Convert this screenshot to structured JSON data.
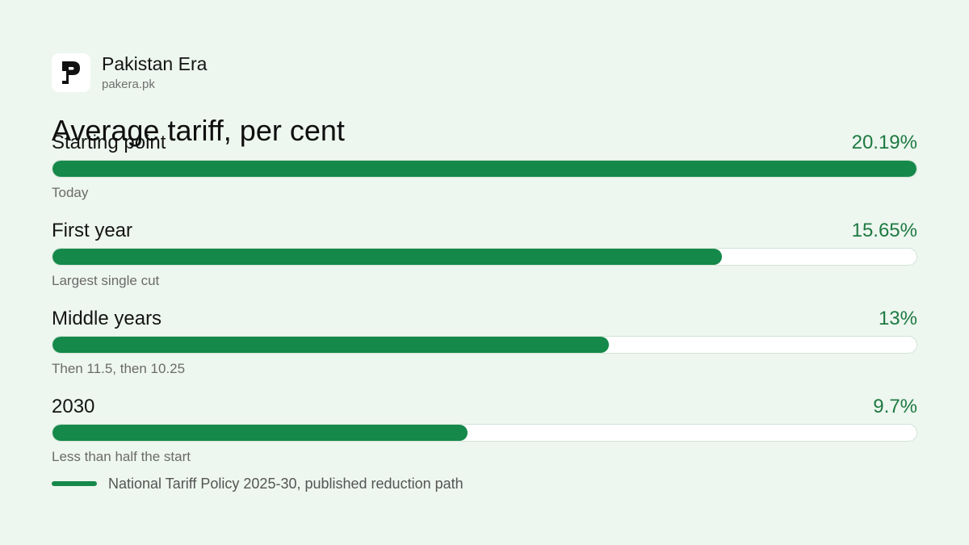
{
  "brand": {
    "name": "Pakistan Era",
    "url": "pakera.pk",
    "logo_icon": "pakistan-era-logo-icon"
  },
  "colors": {
    "background": "#edf6ef",
    "bar_fill": "#15894a",
    "bar_track": "#ffffff",
    "value_text": "#1e7a42"
  },
  "chart_data": {
    "type": "bar",
    "orientation": "horizontal",
    "title": "Average tariff, per cent",
    "xlim": [
      0,
      20.19
    ],
    "categories": [
      "Starting point",
      "First year",
      "Middle years",
      "2030"
    ],
    "values": [
      20.19,
      15.65,
      13,
      9.7
    ],
    "value_labels": [
      "20.19%",
      "15.65%",
      "13%",
      "9.7%"
    ],
    "notes": [
      "Today",
      "Largest single cut",
      "Then 11.5, then 10.25",
      "Less than half the start"
    ],
    "legend": {
      "position": "bottom-left",
      "entries": [
        "National Tariff Policy 2025-30, published reduction path"
      ]
    }
  }
}
